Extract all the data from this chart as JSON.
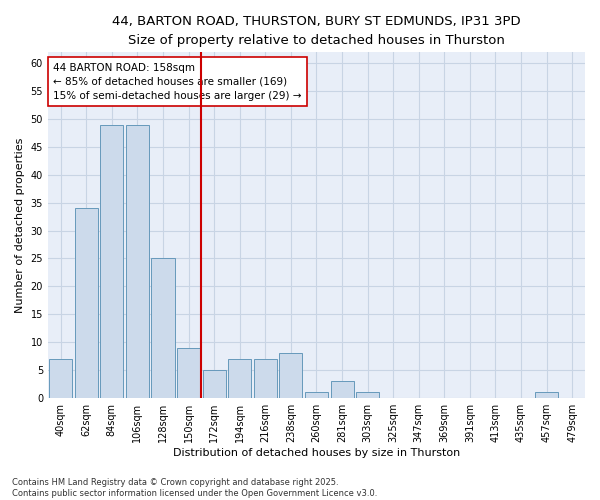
{
  "title_line1": "44, BARTON ROAD, THURSTON, BURY ST EDMUNDS, IP31 3PD",
  "title_line2": "Size of property relative to detached houses in Thurston",
  "xlabel": "Distribution of detached houses by size in Thurston",
  "ylabel": "Number of detached properties",
  "footer": "Contains HM Land Registry data © Crown copyright and database right 2025.\nContains public sector information licensed under the Open Government Licence v3.0.",
  "bin_labels": [
    "40sqm",
    "62sqm",
    "84sqm",
    "106sqm",
    "128sqm",
    "150sqm",
    "172sqm",
    "194sqm",
    "216sqm",
    "238sqm",
    "260sqm",
    "281sqm",
    "303sqm",
    "325sqm",
    "347sqm",
    "369sqm",
    "391sqm",
    "413sqm",
    "435sqm",
    "457sqm",
    "479sqm"
  ],
  "bar_values": [
    7,
    34,
    49,
    49,
    25,
    9,
    5,
    7,
    7,
    8,
    1,
    3,
    1,
    0,
    0,
    0,
    0,
    0,
    0,
    1,
    0
  ],
  "bar_color": "#ccdaeb",
  "bar_edgecolor": "#6699bb",
  "grid_color": "#c8d4e4",
  "background_color": "#e8eef8",
  "vline_x": 5.5,
  "vline_color": "#cc0000",
  "annotation_text": "44 BARTON ROAD: 158sqm\n← 85% of detached houses are smaller (169)\n15% of semi-detached houses are larger (29) →",
  "annotation_box_facecolor": "#ffffff",
  "annotation_box_edgecolor": "#cc0000",
  "ylim": [
    0,
    62
  ],
  "yticks": [
    0,
    5,
    10,
    15,
    20,
    25,
    30,
    35,
    40,
    45,
    50,
    55,
    60
  ],
  "title_fontsize": 9.5,
  "subtitle_fontsize": 8.5,
  "axis_label_fontsize": 8,
  "tick_fontsize": 7,
  "annotation_fontsize": 7.5,
  "footer_fontsize": 6
}
